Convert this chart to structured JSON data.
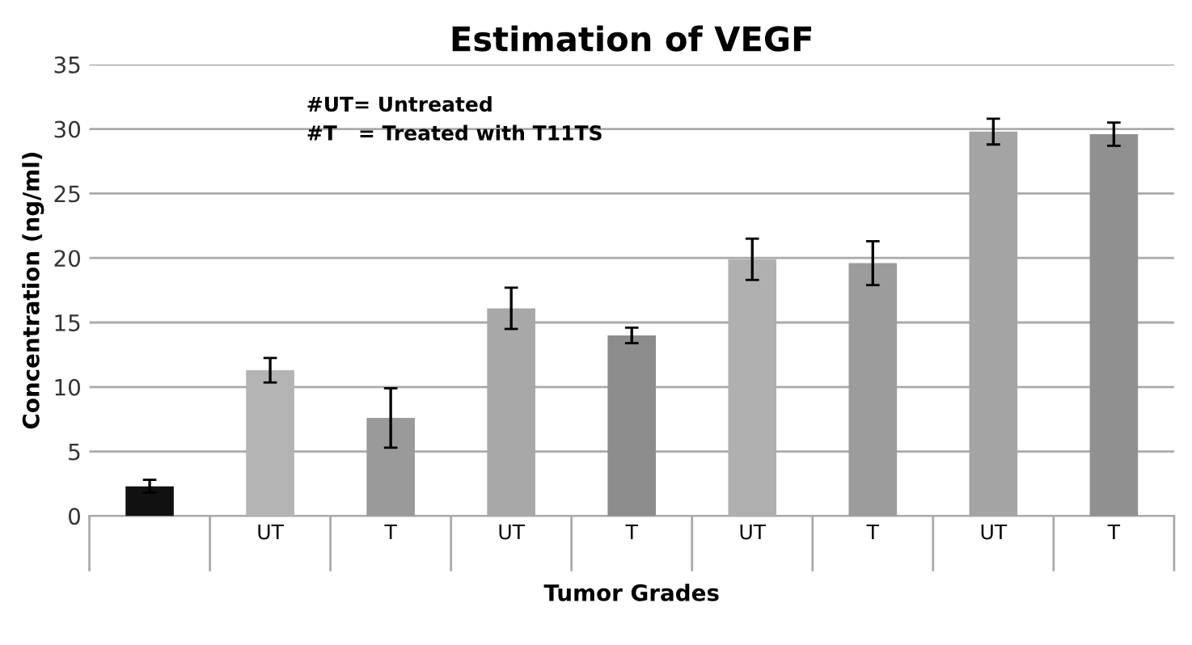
{
  "chart_data": {
    "type": "bar",
    "title": "Estimation of VEGF",
    "xlabel": "Tumor Grades",
    "ylabel": "Concentration (ng/ml)",
    "categories": [
      null,
      "UT",
      "T",
      "UT",
      "T",
      "UT",
      "T",
      "UT",
      "T"
    ],
    "values": [
      2.3,
      11.3,
      7.6,
      16.1,
      14.0,
      19.9,
      19.6,
      29.8,
      29.6
    ],
    "errors": [
      0.5,
      0.95,
      2.3,
      1.6,
      0.6,
      1.6,
      1.7,
      1.0,
      0.9
    ],
    "colors": [
      "#111111",
      "#b4b4b4",
      "#9a9a9a",
      "#a8a8a8",
      "#8c8c8c",
      "#b0b0b0",
      "#9c9c9c",
      "#a4a4a4",
      "#909090"
    ],
    "ylim": [
      0,
      35
    ],
    "yticks": [
      0,
      5,
      10,
      15,
      20,
      25,
      30,
      35
    ],
    "grid": "y",
    "legend": false,
    "annotations": [
      "#UT= Untreated\n#T   = Treated with T11TS"
    ]
  }
}
